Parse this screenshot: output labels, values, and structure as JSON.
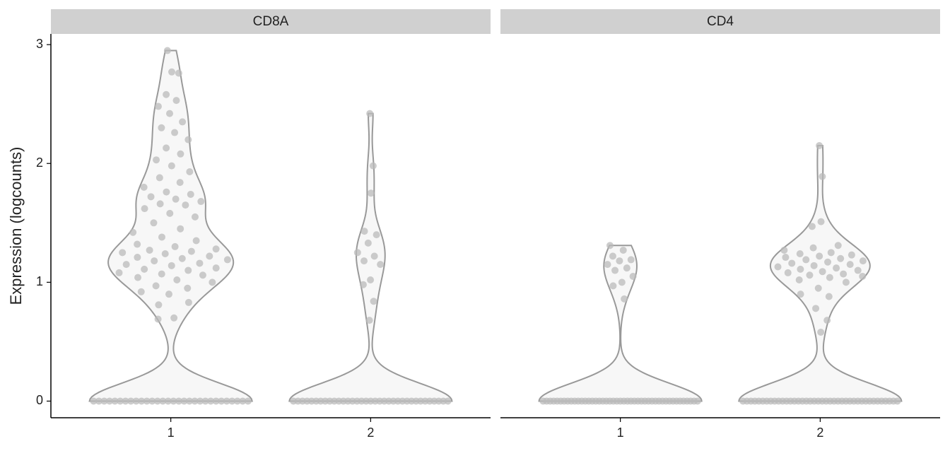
{
  "chart_data": [
    {
      "type": "violin",
      "title": "CD8A",
      "ylabel": "Expression (logcounts)",
      "categories": [
        "1",
        "2"
      ],
      "values": [
        [
          0.69,
          0.7,
          0.81,
          0.83,
          0.9,
          0.92,
          0.95,
          0.97,
          1.0,
          1.02,
          1.04,
          1.06,
          1.07,
          1.08,
          1.1,
          1.11,
          1.12,
          1.14,
          1.15,
          1.16,
          1.18,
          1.19,
          1.2,
          1.21,
          1.22,
          1.24,
          1.25,
          1.26,
          1.27,
          1.28,
          1.3,
          1.32,
          1.35,
          1.38,
          1.42,
          1.45,
          1.5,
          1.55,
          1.58,
          1.62,
          1.65,
          1.66,
          1.68,
          1.7,
          1.72,
          1.74,
          1.76,
          1.8,
          1.84,
          1.88,
          1.93,
          1.98,
          2.03,
          2.08,
          2.13,
          2.2,
          2.26,
          2.3,
          2.35,
          2.42,
          2.48,
          2.53,
          2.58,
          2.76,
          2.77,
          2.95,
          0,
          0,
          0,
          0,
          0,
          0,
          0,
          0,
          0,
          0,
          0,
          0,
          0,
          0,
          0,
          0,
          0,
          0,
          0,
          0,
          0,
          0,
          0,
          0,
          0,
          0,
          0,
          0,
          0,
          0
        ],
        [
          2.42,
          1.98,
          1.75,
          1.43,
          1.4,
          1.33,
          1.25,
          1.22,
          1.18,
          1.15,
          1.02,
          0.98,
          0.84,
          0.68,
          0,
          0,
          0,
          0,
          0,
          0,
          0,
          0,
          0,
          0,
          0,
          0,
          0,
          0,
          0,
          0,
          0,
          0,
          0,
          0,
          0,
          0,
          0,
          0,
          0,
          0,
          0,
          0,
          0,
          0,
          0,
          0,
          0,
          0,
          0
        ]
      ],
      "ylim": [
        -0.14,
        3.09
      ],
      "yticks": [
        0,
        1,
        2,
        3
      ],
      "point_color": "#bbbbbb",
      "line_color": "#999999"
    },
    {
      "type": "violin",
      "title": "CD4",
      "categories": [
        "1",
        "2"
      ],
      "values": [
        [
          1.31,
          1.27,
          1.22,
          1.19,
          1.18,
          1.15,
          1.12,
          1.1,
          1.05,
          1.0,
          0.97,
          0.86,
          0,
          0,
          0,
          0,
          0,
          0,
          0,
          0,
          0,
          0,
          0,
          0,
          0,
          0,
          0,
          0,
          0,
          0,
          0,
          0,
          0,
          0,
          0,
          0,
          0,
          0,
          0,
          0,
          0,
          0,
          0,
          0,
          0,
          0,
          0,
          0,
          0,
          0,
          0,
          0,
          0,
          0,
          0,
          0,
          0
        ],
        [
          2.15,
          1.89,
          1.51,
          1.47,
          1.31,
          1.29,
          1.27,
          1.25,
          1.24,
          1.23,
          1.22,
          1.21,
          1.2,
          1.19,
          1.18,
          1.17,
          1.16,
          1.15,
          1.14,
          1.13,
          1.12,
          1.11,
          1.1,
          1.09,
          1.08,
          1.07,
          1.06,
          1.05,
          1.04,
          1.02,
          1.0,
          0.95,
          0.9,
          0.88,
          0.78,
          0.68,
          0.58,
          0,
          0,
          0,
          0,
          0,
          0,
          0,
          0,
          0,
          0,
          0,
          0,
          0,
          0,
          0,
          0,
          0,
          0,
          0,
          0,
          0,
          0,
          0,
          0,
          0,
          0,
          0,
          0,
          0,
          0,
          0,
          0,
          0,
          0,
          0,
          0,
          0,
          0,
          0,
          0
        ]
      ],
      "ylim": [
        -0.14,
        3.09
      ],
      "point_color": "#bbbbbb",
      "line_color": "#999999"
    }
  ]
}
